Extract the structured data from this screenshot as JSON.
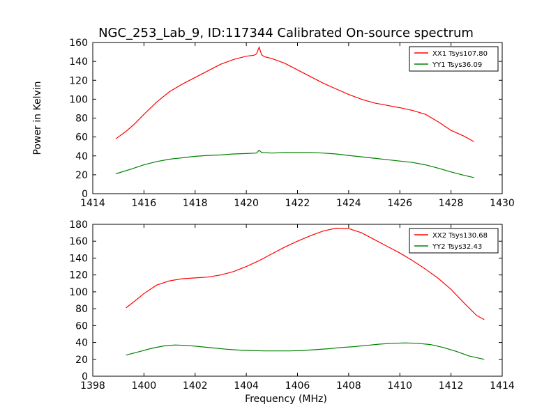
{
  "figure": {
    "title": "NGC_253_Lab_9, ID:117344 Calibrated On-source spectrum",
    "xlabel": "Frequency (MHz)"
  },
  "chart_data": [
    {
      "type": "line",
      "ylabel": "Power in Kelvin",
      "xlim": [
        1414,
        1430
      ],
      "ylim": [
        0,
        160
      ],
      "xticks": [
        1414,
        1416,
        1418,
        1420,
        1422,
        1424,
        1426,
        1428,
        1430
      ],
      "yticks": [
        0,
        20,
        40,
        60,
        80,
        100,
        120,
        140,
        160
      ],
      "legend_position": "top-right",
      "series": [
        {
          "name": "XX1 Tsys107.80",
          "color": "#ff0000",
          "points": [
            [
              1414.9,
              58
            ],
            [
              1415.3,
              66
            ],
            [
              1415.6,
              73
            ],
            [
              1416.0,
              84
            ],
            [
              1416.5,
              97
            ],
            [
              1417.0,
              108
            ],
            [
              1417.5,
              116
            ],
            [
              1418.0,
              123
            ],
            [
              1418.5,
              130
            ],
            [
              1419.0,
              137
            ],
            [
              1419.5,
              142
            ],
            [
              1420.0,
              145.5
            ],
            [
              1420.3,
              146.5
            ],
            [
              1420.4,
              148
            ],
            [
              1420.5,
              155
            ],
            [
              1420.6,
              147
            ],
            [
              1420.7,
              145
            ],
            [
              1421.0,
              143
            ],
            [
              1421.5,
              138
            ],
            [
              1422.0,
              131
            ],
            [
              1422.5,
              124
            ],
            [
              1423.0,
              117
            ],
            [
              1423.5,
              111
            ],
            [
              1424.0,
              105
            ],
            [
              1424.5,
              100
            ],
            [
              1425.0,
              96
            ],
            [
              1425.5,
              93.5
            ],
            [
              1426.0,
              91
            ],
            [
              1426.5,
              88
            ],
            [
              1427.0,
              84
            ],
            [
              1427.5,
              76
            ],
            [
              1428.0,
              67
            ],
            [
              1428.5,
              61
            ],
            [
              1428.9,
              55
            ]
          ]
        },
        {
          "name": "YY1 Tsys36.09",
          "color": "#008000",
          "points": [
            [
              1414.9,
              21
            ],
            [
              1415.5,
              26
            ],
            [
              1416.0,
              30.5
            ],
            [
              1416.5,
              34
            ],
            [
              1417.0,
              36.5
            ],
            [
              1417.5,
              38
            ],
            [
              1418.0,
              39.5
            ],
            [
              1418.5,
              40.5
            ],
            [
              1419.0,
              41
            ],
            [
              1419.5,
              42
            ],
            [
              1420.0,
              42.5
            ],
            [
              1420.4,
              43
            ],
            [
              1420.5,
              46
            ],
            [
              1420.6,
              43.5
            ],
            [
              1421.0,
              43
            ],
            [
              1421.5,
              43.5
            ],
            [
              1422.0,
              43.5
            ],
            [
              1422.5,
              43.5
            ],
            [
              1423.0,
              43
            ],
            [
              1423.5,
              42
            ],
            [
              1424.0,
              40.5
            ],
            [
              1424.5,
              39
            ],
            [
              1425.0,
              37.5
            ],
            [
              1425.5,
              36
            ],
            [
              1426.0,
              34.5
            ],
            [
              1426.5,
              33
            ],
            [
              1427.0,
              30.5
            ],
            [
              1427.5,
              27
            ],
            [
              1428.0,
              23
            ],
            [
              1428.5,
              19.5
            ],
            [
              1428.9,
              17
            ]
          ]
        }
      ]
    },
    {
      "type": "line",
      "ylabel": "",
      "xlim": [
        1398,
        1414
      ],
      "ylim": [
        0,
        180
      ],
      "xticks": [
        1398,
        1400,
        1402,
        1404,
        1406,
        1408,
        1410,
        1412,
        1414
      ],
      "yticks": [
        0,
        20,
        40,
        60,
        80,
        100,
        120,
        140,
        160,
        180
      ],
      "legend_position": "top-right",
      "series": [
        {
          "name": "XX2 Tsys130.68",
          "color": "#ff0000",
          "points": [
            [
              1399.3,
              81
            ],
            [
              1399.6,
              88
            ],
            [
              1400.0,
              98
            ],
            [
              1400.5,
              108
            ],
            [
              1401.0,
              113
            ],
            [
              1401.5,
              115.5
            ],
            [
              1402.0,
              116.5
            ],
            [
              1402.5,
              117.5
            ],
            [
              1403.0,
              120
            ],
            [
              1403.5,
              124
            ],
            [
              1404.0,
              130
            ],
            [
              1404.5,
              137
            ],
            [
              1405.0,
              145
            ],
            [
              1405.5,
              153
            ],
            [
              1406.0,
              160
            ],
            [
              1406.5,
              166.5
            ],
            [
              1407.0,
              172
            ],
            [
              1407.5,
              175.5
            ],
            [
              1408.0,
              175
            ],
            [
              1408.5,
              170
            ],
            [
              1409.0,
              162
            ],
            [
              1409.5,
              154
            ],
            [
              1410.0,
              146
            ],
            [
              1410.5,
              137
            ],
            [
              1411.0,
              127
            ],
            [
              1411.5,
              116
            ],
            [
              1412.0,
              103
            ],
            [
              1412.5,
              87
            ],
            [
              1413.0,
              72
            ],
            [
              1413.3,
              67
            ]
          ]
        },
        {
          "name": "YY2 Tsys32.43",
          "color": "#008000",
          "points": [
            [
              1399.3,
              25
            ],
            [
              1399.8,
              29
            ],
            [
              1400.3,
              33
            ],
            [
              1400.8,
              36
            ],
            [
              1401.2,
              37
            ],
            [
              1401.7,
              36.5
            ],
            [
              1402.2,
              35
            ],
            [
              1402.7,
              33.5
            ],
            [
              1403.2,
              32
            ],
            [
              1403.7,
              31
            ],
            [
              1404.2,
              30.5
            ],
            [
              1404.7,
              30
            ],
            [
              1405.2,
              30
            ],
            [
              1405.7,
              30
            ],
            [
              1406.2,
              30.5
            ],
            [
              1406.7,
              31.5
            ],
            [
              1407.2,
              32.5
            ],
            [
              1407.7,
              34
            ],
            [
              1408.2,
              35
            ],
            [
              1408.7,
              36.5
            ],
            [
              1409.2,
              38
            ],
            [
              1409.7,
              39
            ],
            [
              1410.2,
              39.5
            ],
            [
              1410.7,
              39
            ],
            [
              1411.2,
              37.5
            ],
            [
              1411.7,
              34
            ],
            [
              1412.2,
              29.5
            ],
            [
              1412.7,
              24
            ],
            [
              1413.3,
              20
            ]
          ]
        }
      ]
    }
  ]
}
